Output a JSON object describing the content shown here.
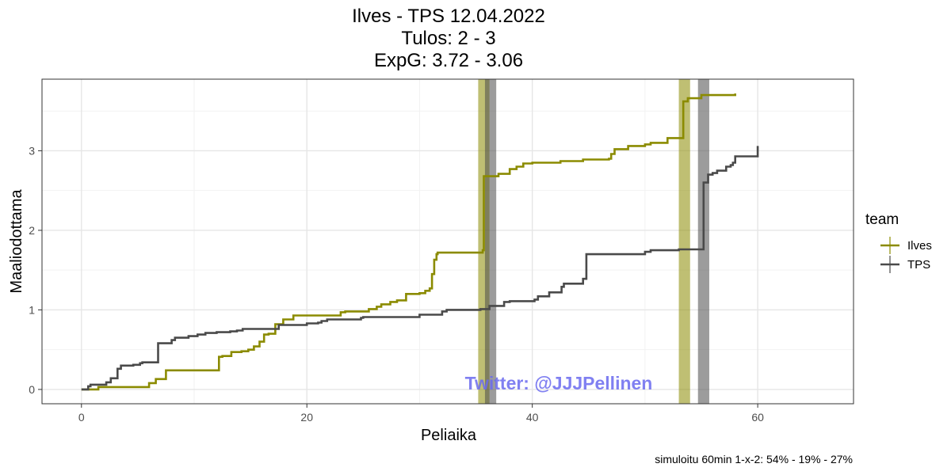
{
  "chart_data": {
    "type": "line",
    "title_lines": [
      "Ilves - TPS 12.04.2022",
      "Tulos: 2 - 3",
      "ExpG: 3.72 - 3.06"
    ],
    "xlabel": "Peliaika",
    "ylabel": "Maaliodottama",
    "xlim": [
      -3.5,
      68.5
    ],
    "ylim": [
      -0.18,
      3.9
    ],
    "x_ticks": [
      0,
      20,
      40,
      60
    ],
    "y_ticks": [
      0,
      1,
      2,
      3
    ],
    "grid": true,
    "legend": {
      "title": "team",
      "position": "right"
    },
    "caption": "simuloitu 60min 1-x-2:  54% - 19% - 27%",
    "watermark": "Twitter: @JJJPellinen",
    "goal_bands": [
      {
        "team": "Ilves",
        "x": 35.7
      },
      {
        "team": "TPS",
        "x": 36.3
      },
      {
        "team": "Ilves",
        "x": 53.5
      },
      {
        "team": "TPS",
        "x": 55.2
      }
    ],
    "series": [
      {
        "name": "Ilves",
        "color": "#8b8b00",
        "x": [
          0,
          1.0,
          1.5,
          6.0,
          6.6,
          7.5,
          12.2,
          12.5,
          13.3,
          14.2,
          14.8,
          15.3,
          15.8,
          16.2,
          16.6,
          17.2,
          17.9,
          18.8,
          22.0,
          23.0,
          23.4,
          25.5,
          26.2,
          26.6,
          27.4,
          28.0,
          28.8,
          30.0,
          30.5,
          30.9,
          31.1,
          31.3,
          31.5,
          31.6,
          34.0,
          35.6,
          35.7,
          37.0,
          38.0,
          38.6,
          39.2,
          40.0,
          42.5,
          44.0,
          44.5,
          46.0,
          46.8,
          47.0,
          47.3,
          48.5,
          50.0,
          50.5,
          52.0,
          53.4,
          53.8,
          55.0,
          58.0
        ],
        "values": [
          0.0,
          0.0,
          0.03,
          0.08,
          0.13,
          0.24,
          0.41,
          0.42,
          0.47,
          0.48,
          0.5,
          0.54,
          0.6,
          0.69,
          0.7,
          0.82,
          0.88,
          0.93,
          0.93,
          0.97,
          0.98,
          1.01,
          1.04,
          1.07,
          1.1,
          1.12,
          1.2,
          1.21,
          1.24,
          1.27,
          1.45,
          1.63,
          1.7,
          1.72,
          1.72,
          1.75,
          2.68,
          2.71,
          2.77,
          2.8,
          2.84,
          2.85,
          2.87,
          2.87,
          2.89,
          2.89,
          2.9,
          2.96,
          3.02,
          3.06,
          3.08,
          3.1,
          3.16,
          3.62,
          3.66,
          3.7,
          3.72
        ]
      },
      {
        "name": "TPS",
        "color": "#4a4a4a",
        "x": [
          0,
          0.6,
          0.8,
          2.2,
          2.6,
          3.2,
          3.5,
          4.6,
          5.2,
          5.4,
          6.8,
          8.0,
          8.3,
          9.5,
          10.3,
          11.0,
          12.0,
          13.2,
          13.8,
          14.3,
          15.0,
          17.5,
          20.0,
          21.0,
          21.3,
          21.8,
          24.8,
          25.0,
          30.0,
          32.0,
          32.4,
          35.4,
          36.2,
          37.5,
          38.0,
          40.2,
          40.5,
          41.5,
          42.6,
          42.8,
          44.5,
          44.8,
          50.0,
          50.5,
          53.0,
          55.0,
          55.2,
          55.6,
          56.0,
          56.4,
          57.2,
          57.6,
          57.8,
          58.0,
          60.0
        ],
        "values": [
          0.0,
          0.04,
          0.06,
          0.09,
          0.14,
          0.26,
          0.3,
          0.31,
          0.33,
          0.34,
          0.58,
          0.62,
          0.65,
          0.67,
          0.69,
          0.71,
          0.72,
          0.73,
          0.74,
          0.76,
          0.76,
          0.81,
          0.83,
          0.84,
          0.86,
          0.88,
          0.9,
          0.91,
          0.94,
          0.98,
          1.0,
          1.01,
          1.05,
          1.1,
          1.11,
          1.13,
          1.17,
          1.22,
          1.29,
          1.33,
          1.39,
          1.7,
          1.73,
          1.75,
          1.76,
          1.76,
          2.6,
          2.7,
          2.72,
          2.75,
          2.8,
          2.82,
          2.85,
          2.93,
          3.06
        ]
      }
    ]
  }
}
